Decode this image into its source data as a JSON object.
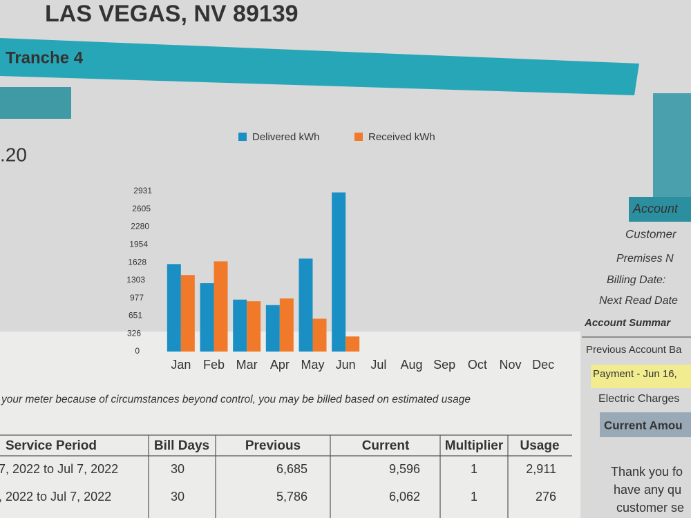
{
  "header": {
    "address": "LAS VEGAS, NV 89139",
    "tranche": "Tranche 4",
    "amount": ".20"
  },
  "account_panel": {
    "labels": [
      "Account",
      "Customer",
      "Premises N",
      "Billing Date:",
      "Next Read Date"
    ],
    "summary_title": "Account Summar",
    "items": [
      "Previous Account Ba",
      "Payment - Jun 16,",
      "Electric Charges"
    ],
    "current": "Current Amou",
    "note": [
      "Thank you fo",
      "have any qu",
      "customer se"
    ]
  },
  "notice": "your meter because of circumstances beyond control, you may be billed based on estimated usage",
  "table": {
    "columns": [
      "Service Period",
      "Bill Days",
      "Previous",
      "Current",
      "Multiplier",
      "Usage"
    ],
    "rows": [
      [
        "7, 2022 to Jul 7, 2022",
        "30",
        "6,685",
        "9,596",
        "1",
        "2,911"
      ],
      [
        ", 2022 to Jul 7, 2022",
        "30",
        "5,786",
        "6,062",
        "1",
        "276"
      ]
    ]
  },
  "chart_data": {
    "type": "bar",
    "categories": [
      "Jan",
      "Feb",
      "Mar",
      "Apr",
      "May",
      "Jun",
      "Jul",
      "Aug",
      "Sep",
      "Oct",
      "Nov",
      "Dec"
    ],
    "series": [
      {
        "name": "Delivered kWh",
        "color": "#1a8fc4",
        "values": [
          1600,
          1250,
          950,
          850,
          1700,
          2911,
          null,
          null,
          null,
          null,
          null,
          null
        ]
      },
      {
        "name": "Received kWh",
        "color": "#f07a2a",
        "values": [
          1400,
          1650,
          920,
          970,
          600,
          276,
          null,
          null,
          null,
          null,
          null,
          null
        ]
      }
    ],
    "ylim": [
      0,
      2931
    ],
    "yticks": [
      0,
      326,
      651,
      977,
      1303,
      1628,
      1954,
      2280,
      2605,
      2931
    ],
    "grid": false
  }
}
